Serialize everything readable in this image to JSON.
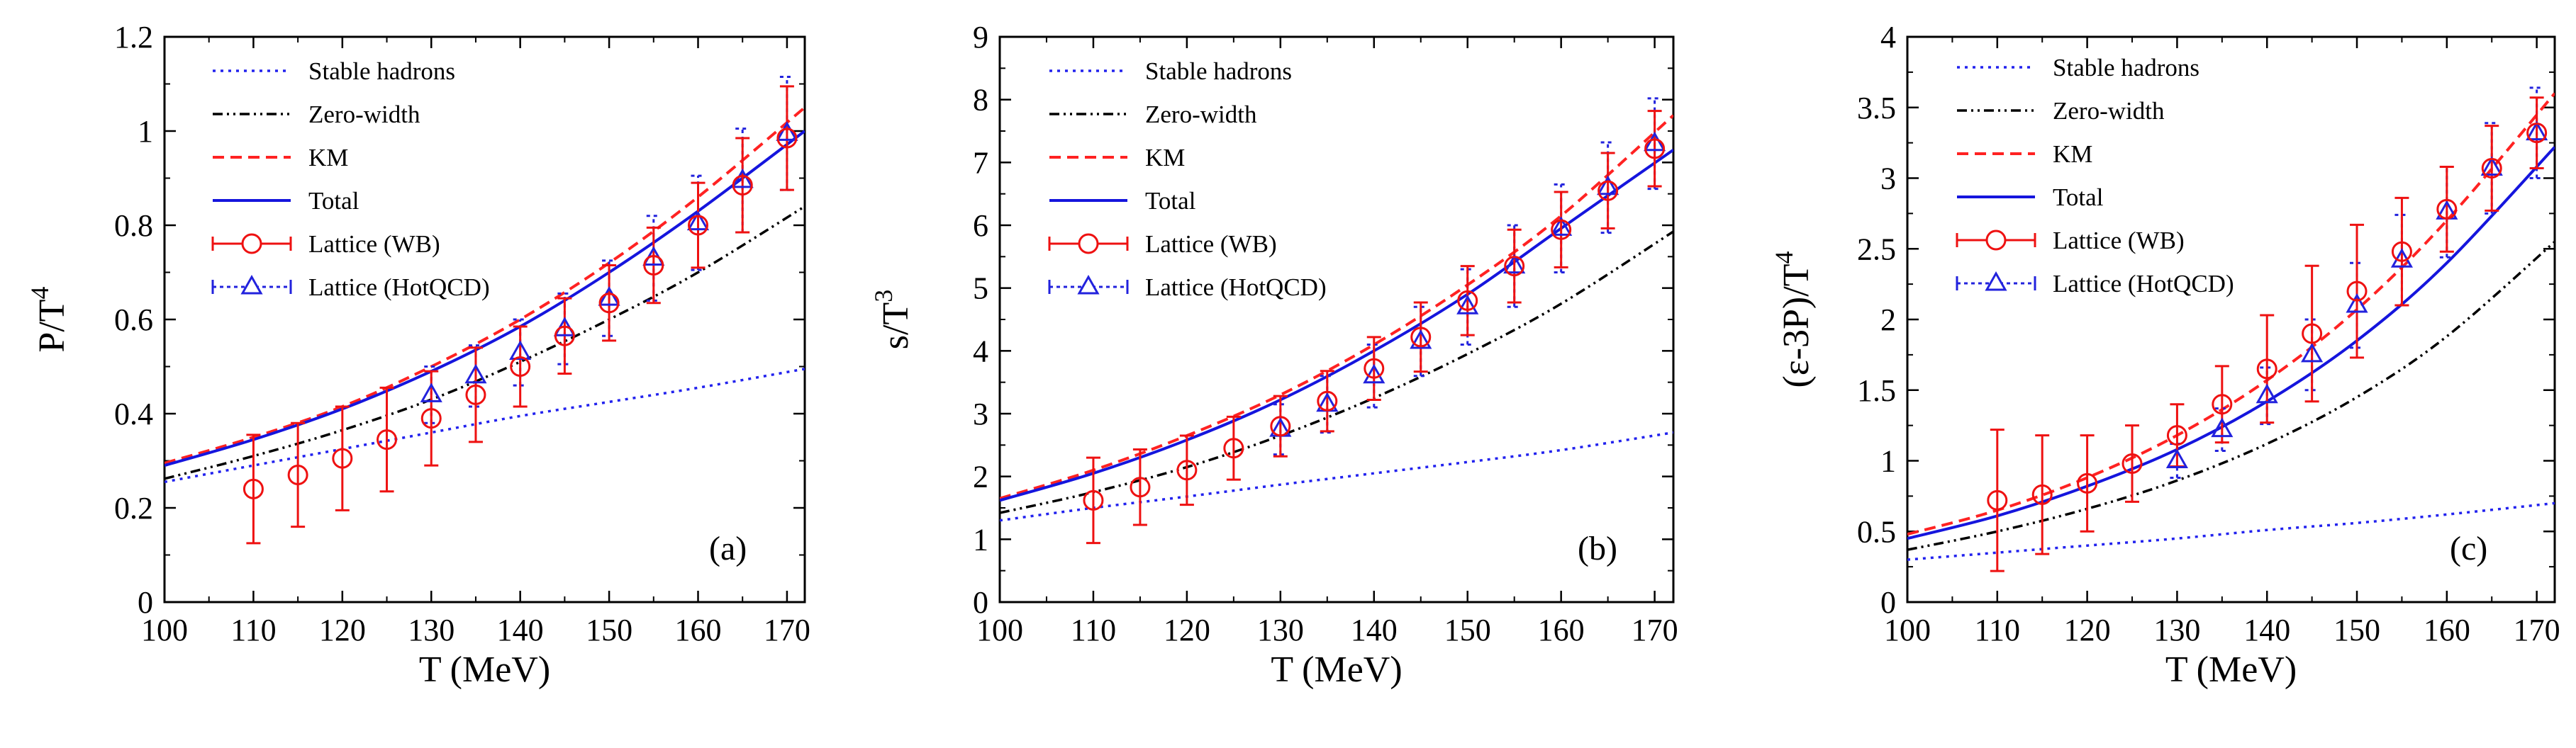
{
  "colors": {
    "stable": "#2222ee",
    "zero": "#000000",
    "km": "#ff2222",
    "total": "#1515dd",
    "wb": "#ee1111",
    "hotqcd": "#2222dd"
  },
  "chart_data": [
    {
      "type": "line",
      "panel_label": "(a)",
      "xlabel": "T (MeV)",
      "ylabel": "P/T",
      "ylabel_sup": "4",
      "xlim": [
        100,
        172
      ],
      "ylim": [
        0,
        1.2
      ],
      "xticks": [
        100,
        110,
        120,
        130,
        140,
        150,
        160,
        170
      ],
      "yticks": [
        0,
        0.2,
        0.4,
        0.6,
        0.8,
        1,
        1.2
      ],
      "ytick_labels": [
        "0",
        "0.2",
        "0.4",
        "0.6",
        "0.8",
        "1",
        "1.2"
      ],
      "legend": [
        "Stable hadrons",
        "Zero-width",
        "KM",
        "Total",
        "Lattice (WB)",
        "Lattice (HotQCD)"
      ],
      "curves": [
        {
          "name": "Stable hadrons",
          "style": "stable",
          "x": [
            100,
            110,
            120,
            130,
            140,
            150,
            160,
            172
          ],
          "y": [
            0.255,
            0.29,
            0.325,
            0.36,
            0.395,
            0.425,
            0.455,
            0.495
          ]
        },
        {
          "name": "Zero-width",
          "style": "zero",
          "x": [
            100,
            110,
            120,
            130,
            140,
            150,
            160,
            172
          ],
          "y": [
            0.262,
            0.31,
            0.365,
            0.43,
            0.51,
            0.6,
            0.7,
            0.84
          ]
        },
        {
          "name": "KM",
          "style": "km",
          "x": [
            100,
            110,
            120,
            130,
            140,
            150,
            160,
            172
          ],
          "y": [
            0.295,
            0.35,
            0.415,
            0.5,
            0.6,
            0.72,
            0.86,
            1.05
          ]
        },
        {
          "name": "Total",
          "style": "total",
          "x": [
            100,
            110,
            120,
            130,
            140,
            150,
            160,
            172
          ],
          "y": [
            0.29,
            0.345,
            0.41,
            0.49,
            0.585,
            0.7,
            0.83,
            1.0
          ]
        }
      ],
      "wb": {
        "x": [
          110,
          115,
          120,
          125,
          130,
          135,
          140,
          145,
          150,
          155,
          160,
          165,
          170
        ],
        "y": [
          0.24,
          0.27,
          0.305,
          0.345,
          0.39,
          0.44,
          0.5,
          0.565,
          0.635,
          0.715,
          0.8,
          0.885,
          0.985
        ],
        "err": [
          0.115,
          0.11,
          0.11,
          0.11,
          0.1,
          0.1,
          0.085,
          0.08,
          0.08,
          0.08,
          0.09,
          0.1,
          0.11
        ]
      },
      "hotqcd": {
        "x": [
          130,
          135,
          140,
          145,
          150,
          155,
          160,
          165,
          170
        ],
        "y": [
          0.44,
          0.48,
          0.53,
          0.58,
          0.645,
          0.73,
          0.805,
          0.895,
          0.995
        ],
        "err": [
          0.06,
          0.065,
          0.07,
          0.075,
          0.08,
          0.09,
          0.1,
          0.11,
          0.12
        ]
      }
    },
    {
      "type": "line",
      "panel_label": "(b)",
      "xlabel": "T (MeV)",
      "ylabel": "s/T",
      "ylabel_sup": "3",
      "xlim": [
        100,
        172
      ],
      "ylim": [
        0,
        9
      ],
      "xticks": [
        100,
        110,
        120,
        130,
        140,
        150,
        160,
        170
      ],
      "yticks": [
        0,
        1,
        2,
        3,
        4,
        5,
        6,
        7,
        8,
        9
      ],
      "ytick_labels": [
        "0",
        "1",
        "2",
        "3",
        "4",
        "5",
        "6",
        "7",
        "8",
        "9"
      ],
      "legend": [
        "Stable hadrons",
        "Zero-width",
        "KM",
        "Total",
        "Lattice (WB)",
        "Lattice (HotQCD)"
      ],
      "curves": [
        {
          "name": "Stable hadrons",
          "style": "stable",
          "x": [
            100,
            110,
            120,
            130,
            140,
            150,
            160,
            172
          ],
          "y": [
            1.3,
            1.5,
            1.68,
            1.87,
            2.05,
            2.23,
            2.42,
            2.7
          ]
        },
        {
          "name": "Zero-width",
          "style": "zero",
          "x": [
            100,
            110,
            120,
            130,
            140,
            150,
            160,
            172
          ],
          "y": [
            1.42,
            1.75,
            2.15,
            2.65,
            3.25,
            3.95,
            4.75,
            5.9
          ]
        },
        {
          "name": "KM",
          "style": "km",
          "x": [
            100,
            110,
            120,
            130,
            140,
            150,
            160,
            172
          ],
          "y": [
            1.65,
            2.1,
            2.65,
            3.3,
            4.1,
            5.05,
            6.15,
            7.75
          ]
        },
        {
          "name": "Total",
          "style": "total",
          "x": [
            100,
            110,
            120,
            130,
            140,
            150,
            160,
            172
          ],
          "y": [
            1.62,
            2.05,
            2.58,
            3.22,
            4.0,
            4.9,
            5.95,
            7.2
          ]
        }
      ],
      "wb": {
        "x": [
          110,
          115,
          120,
          125,
          130,
          135,
          140,
          145,
          150,
          155,
          160,
          165,
          170
        ],
        "y": [
          1.62,
          1.83,
          2.1,
          2.45,
          2.8,
          3.2,
          3.72,
          4.22,
          4.8,
          5.35,
          5.93,
          6.55,
          7.22
        ],
        "err": [
          0.68,
          0.6,
          0.55,
          0.5,
          0.48,
          0.48,
          0.5,
          0.55,
          0.55,
          0.58,
          0.6,
          0.6,
          0.6
        ]
      },
      "hotqcd": {
        "x": [
          130,
          135,
          140,
          145,
          150,
          155,
          160,
          165,
          170
        ],
        "y": [
          2.75,
          3.15,
          3.6,
          4.15,
          4.7,
          5.35,
          5.95,
          6.6,
          7.3
        ],
        "err": [
          0.4,
          0.45,
          0.5,
          0.55,
          0.6,
          0.65,
          0.7,
          0.72,
          0.72
        ]
      }
    },
    {
      "type": "line",
      "panel_label": "(c)",
      "xlabel": "T (MeV)",
      "ylabel": "(ε-3P)/T",
      "ylabel_sup": "4",
      "xlim": [
        100,
        172
      ],
      "ylim": [
        0,
        4
      ],
      "xticks": [
        100,
        110,
        120,
        130,
        140,
        150,
        160,
        170
      ],
      "yticks": [
        0,
        0.5,
        1,
        1.5,
        2,
        2.5,
        3,
        3.5,
        4
      ],
      "ytick_labels": [
        "0",
        "0.5",
        "1",
        "1.5",
        "2",
        "2.5",
        "3",
        "3.5",
        "4"
      ],
      "legend": [
        "Stable hadrons",
        "Zero-width",
        "KM",
        "Total",
        "Lattice (WB)",
        "Lattice (HotQCD)"
      ],
      "curves": [
        {
          "name": "Stable hadrons",
          "style": "stable",
          "x": [
            100,
            110,
            120,
            130,
            140,
            150,
            160,
            172
          ],
          "y": [
            0.3,
            0.35,
            0.4,
            0.45,
            0.51,
            0.56,
            0.62,
            0.7
          ]
        },
        {
          "name": "Zero-width",
          "style": "zero",
          "x": [
            100,
            110,
            120,
            130,
            140,
            150,
            160,
            172
          ],
          "y": [
            0.37,
            0.5,
            0.66,
            0.86,
            1.12,
            1.45,
            1.88,
            2.55
          ]
        },
        {
          "name": "KM",
          "style": "km",
          "x": [
            100,
            110,
            120,
            130,
            140,
            150,
            160,
            172
          ],
          "y": [
            0.48,
            0.65,
            0.88,
            1.18,
            1.57,
            2.07,
            2.7,
            3.6
          ]
        },
        {
          "name": "Total",
          "style": "total",
          "x": [
            100,
            110,
            120,
            130,
            140,
            150,
            160,
            172
          ],
          "y": [
            0.45,
            0.61,
            0.82,
            1.08,
            1.42,
            1.85,
            2.4,
            3.22
          ]
        }
      ],
      "wb": {
        "x": [
          110,
          115,
          120,
          125,
          130,
          135,
          140,
          145,
          150,
          155,
          160,
          165,
          170
        ],
        "y": [
          0.72,
          0.76,
          0.84,
          0.98,
          1.18,
          1.4,
          1.65,
          1.9,
          2.2,
          2.48,
          2.78,
          3.07,
          3.32
        ],
        "err": [
          0.5,
          0.42,
          0.34,
          0.27,
          0.22,
          0.27,
          0.38,
          0.48,
          0.47,
          0.38,
          0.3,
          0.3,
          0.25
        ]
      },
      "hotqcd": {
        "x": [
          130,
          135,
          140,
          145,
          150,
          155,
          160,
          165,
          170
        ],
        "y": [
          1.0,
          1.22,
          1.46,
          1.75,
          2.1,
          2.42,
          2.76,
          3.07,
          3.32
        ],
        "err": [
          0.12,
          0.15,
          0.2,
          0.25,
          0.3,
          0.32,
          0.32,
          0.32,
          0.32
        ]
      }
    }
  ]
}
